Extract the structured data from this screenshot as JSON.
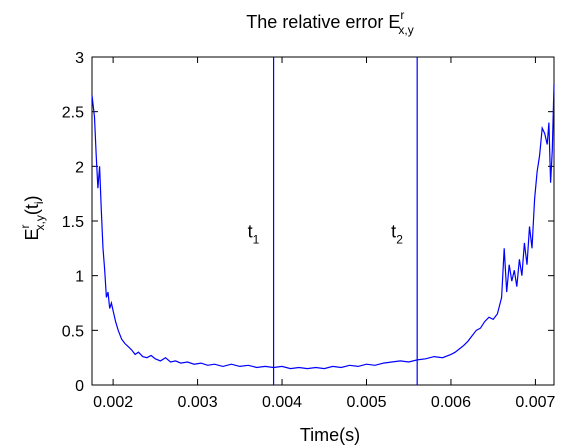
{
  "colors": {
    "line": "#0000ff",
    "axes": "#000000",
    "background": "#ffffff"
  },
  "chart_data": {
    "type": "line",
    "title": {
      "main": "The relative error E",
      "sup": "r",
      "sub": "x,y"
    },
    "xlabel": "Time(s)",
    "ylabel": {
      "base": "E",
      "sup": "r",
      "sub": "x,y",
      "paren_open": "(t",
      "paren_sub": "i",
      "paren_close": ")"
    },
    "xlim": [
      0.00175,
      0.00722
    ],
    "ylim": [
      0,
      3
    ],
    "xticks": [
      0.002,
      0.003,
      0.004,
      0.005,
      0.006,
      0.007
    ],
    "xtick_labels": [
      "0.002",
      "0.003",
      "0.004",
      "0.005",
      "0.006",
      "0.007"
    ],
    "yticks": [
      0,
      0.5,
      1,
      1.5,
      2,
      2.5,
      3
    ],
    "ytick_labels": [
      "0",
      "0.5",
      "1",
      "1.5",
      "2",
      "2.5",
      "3"
    ],
    "grid": false,
    "vlines": [
      {
        "x": 0.0039,
        "label": "t",
        "label_sub": "1",
        "label_y": 1.35
      },
      {
        "x": 0.0056,
        "label": "t",
        "label_sub": "2",
        "label_y": 1.35
      }
    ],
    "series": [
      {
        "x": [
          0.00175,
          0.00178,
          0.0018,
          0.00182,
          0.00184,
          0.00186,
          0.00188,
          0.0019,
          0.00192,
          0.00194,
          0.00196,
          0.00198,
          0.002,
          0.00203,
          0.00206,
          0.0021,
          0.00214,
          0.00218,
          0.00222,
          0.00226,
          0.0023,
          0.00235,
          0.0024,
          0.00245,
          0.0025,
          0.00256,
          0.00262,
          0.00268,
          0.00274,
          0.0028,
          0.00288,
          0.00296,
          0.00304,
          0.00312,
          0.0032,
          0.0033,
          0.0034,
          0.0035,
          0.0036,
          0.0037,
          0.0038,
          0.0039,
          0.004,
          0.0041,
          0.0042,
          0.0043,
          0.0044,
          0.0045,
          0.0046,
          0.0047,
          0.0048,
          0.0049,
          0.005,
          0.0051,
          0.0052,
          0.0053,
          0.0054,
          0.0055,
          0.0056,
          0.0057,
          0.0058,
          0.0059,
          0.006,
          0.00605,
          0.0061,
          0.00615,
          0.0062,
          0.00625,
          0.0063,
          0.00635,
          0.0064,
          0.00645,
          0.0065,
          0.00655,
          0.0066,
          0.00663,
          0.00666,
          0.00669,
          0.00672,
          0.00675,
          0.00678,
          0.00681,
          0.00684,
          0.00687,
          0.0069,
          0.00693,
          0.00696,
          0.00699,
          0.00702,
          0.00705,
          0.00708,
          0.00711,
          0.00714,
          0.00716,
          0.00718,
          0.0072,
          0.00722
        ],
        "y": [
          2.65,
          2.45,
          2.1,
          1.8,
          2.0,
          1.6,
          1.25,
          1.05,
          0.8,
          0.85,
          0.7,
          0.75,
          0.68,
          0.58,
          0.5,
          0.42,
          0.38,
          0.35,
          0.32,
          0.28,
          0.3,
          0.26,
          0.25,
          0.27,
          0.24,
          0.22,
          0.25,
          0.21,
          0.22,
          0.2,
          0.21,
          0.19,
          0.2,
          0.18,
          0.19,
          0.17,
          0.19,
          0.17,
          0.18,
          0.16,
          0.17,
          0.16,
          0.17,
          0.15,
          0.16,
          0.15,
          0.16,
          0.15,
          0.17,
          0.16,
          0.18,
          0.17,
          0.19,
          0.18,
          0.2,
          0.21,
          0.22,
          0.21,
          0.23,
          0.24,
          0.26,
          0.25,
          0.28,
          0.3,
          0.33,
          0.36,
          0.4,
          0.45,
          0.5,
          0.52,
          0.58,
          0.62,
          0.6,
          0.65,
          0.8,
          1.25,
          0.85,
          1.1,
          0.95,
          1.05,
          0.9,
          1.15,
          1.0,
          1.3,
          1.1,
          1.45,
          1.25,
          1.7,
          1.95,
          2.1,
          2.35,
          2.3,
          2.2,
          2.4,
          1.85,
          2.15,
          2.75
        ]
      }
    ]
  }
}
